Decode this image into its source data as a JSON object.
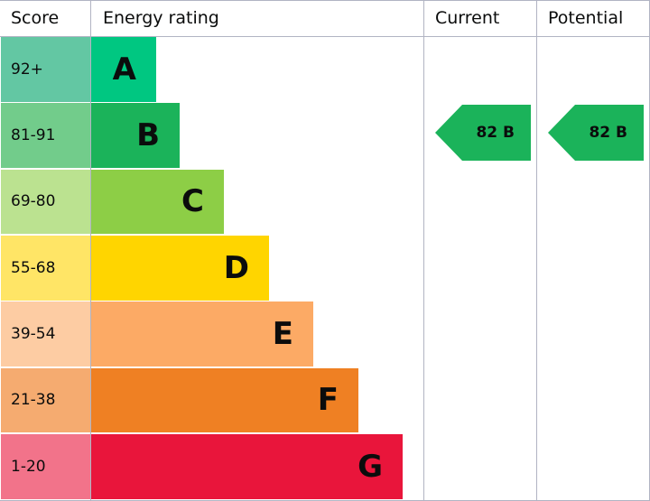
{
  "headers": {
    "score": "Score",
    "rating": "Energy rating",
    "current": "Current",
    "potential": "Potential"
  },
  "chart_data": {
    "type": "bar",
    "bands": [
      {
        "band": "A",
        "score": "92+",
        "color": "#00c781",
        "score_color": "#63c7a3"
      },
      {
        "band": "B",
        "score": "81-91",
        "color": "#1bb35a",
        "score_color": "#72cc8b"
      },
      {
        "band": "C",
        "score": "69-80",
        "color": "#8dce46",
        "score_color": "#bbe290"
      },
      {
        "band": "D",
        "score": "55-68",
        "color": "#ffd500",
        "score_color": "#ffe566"
      },
      {
        "band": "E",
        "score": "39-54",
        "color": "#fcaa65",
        "score_color": "#fdcca3"
      },
      {
        "band": "F",
        "score": "21-38",
        "color": "#ef8023",
        "score_color": "#f5ab70"
      },
      {
        "band": "G",
        "score": "1-20",
        "color": "#e9153b",
        "score_color": "#f2738a"
      }
    ],
    "current": {
      "value": 82,
      "band": "B",
      "label": "82 B",
      "color": "#1bb35a"
    },
    "potential": {
      "value": 82,
      "band": "B",
      "label": "82 B",
      "color": "#1bb35a"
    }
  }
}
